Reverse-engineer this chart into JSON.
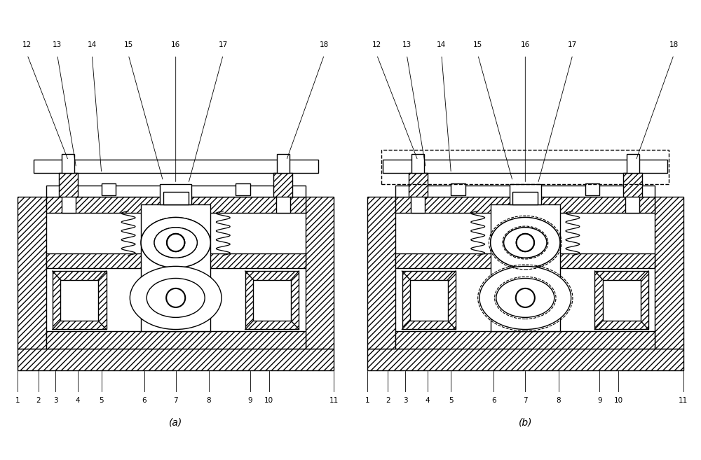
{
  "fig_width": 10.0,
  "fig_height": 6.57,
  "dpi": 100,
  "bg_color": "#ffffff",
  "label_a": "(a)",
  "label_b": "(b)",
  "part_labels_bottom": [
    "1",
    "2",
    "3",
    "4",
    "5",
    "6",
    "7",
    "8",
    "9",
    "10",
    "11"
  ],
  "part_labels_top": [
    "12",
    "13",
    "14",
    "15",
    "16",
    "17",
    "18"
  ],
  "lw": 1.0,
  "hatch": "////"
}
